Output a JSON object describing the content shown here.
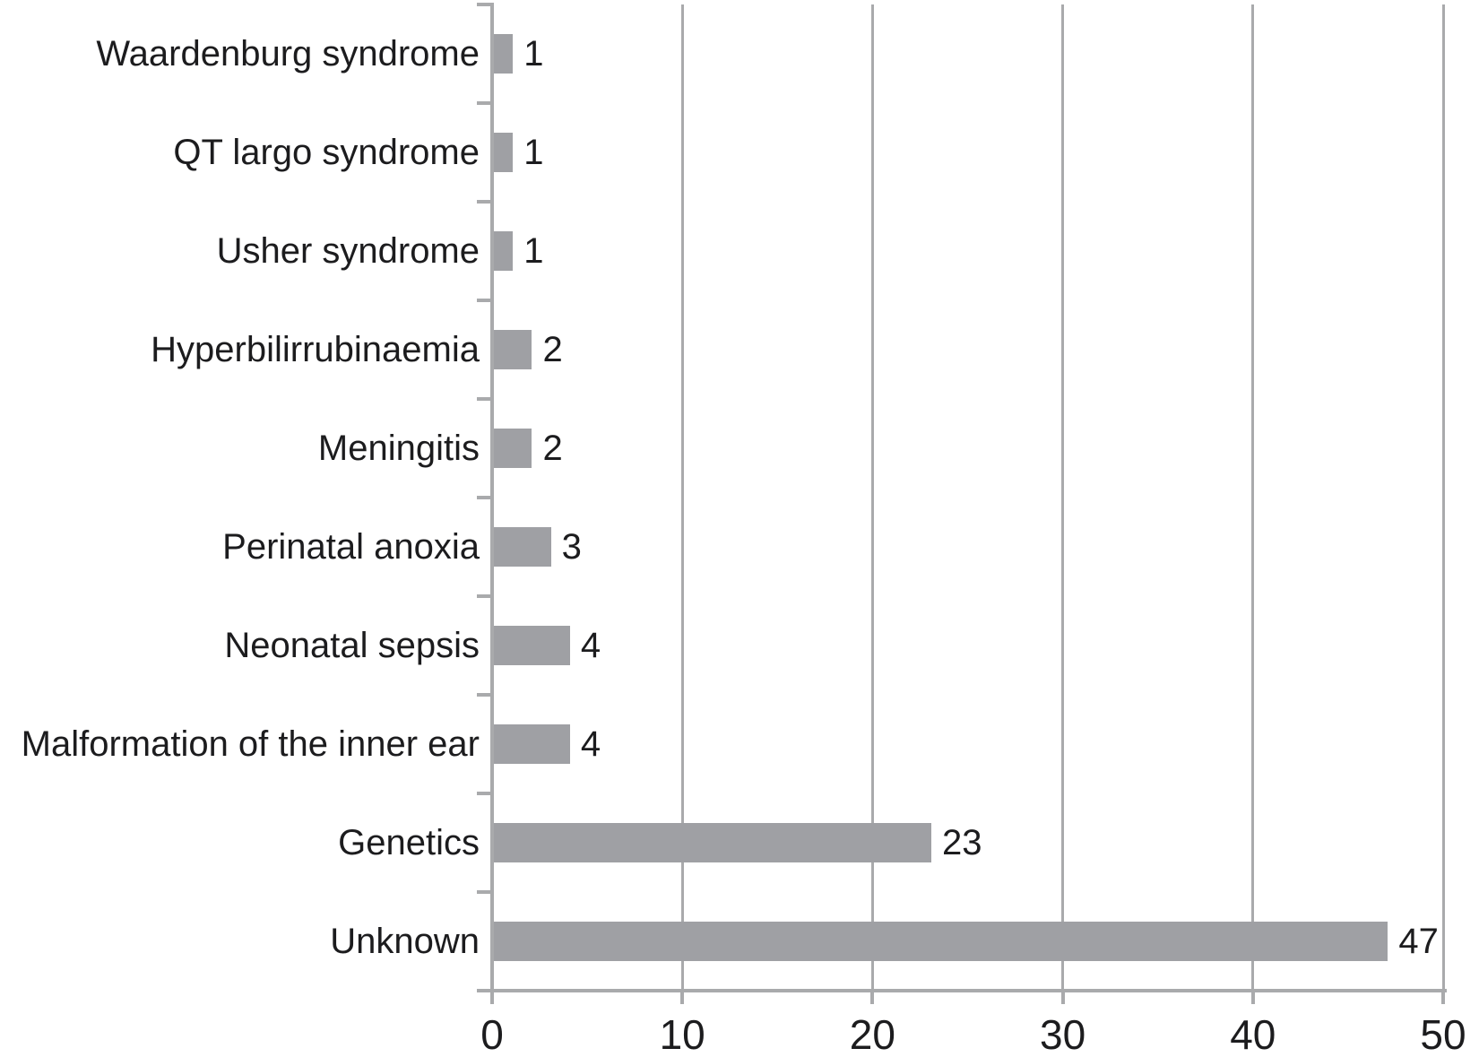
{
  "figure": {
    "background_color": "#ffffff",
    "text_color": "#1c1c1e",
    "bar_color": "#9fa0a4",
    "axis_color": "#a9aaac",
    "grid_color": "#a9aaac"
  },
  "chart_data": {
    "type": "bar",
    "orientation": "horizontal",
    "title": "",
    "xlabel": "",
    "ylabel": "",
    "legend": "none",
    "grid": "vertical-only",
    "xlim": [
      0,
      50
    ],
    "x_ticks": [
      0,
      10,
      20,
      30,
      40,
      50
    ],
    "categories": [
      "Waardenburg syndrome",
      "QT largo syndrome",
      "Usher syndrome",
      "Hyperbilirrubinaemia",
      "Meningitis",
      "Perinatal anoxia",
      "Neonatal sepsis",
      "Malformation of the inner ear",
      "Genetics",
      "Unknown"
    ],
    "values": [
      1,
      1,
      1,
      2,
      2,
      3,
      4,
      4,
      23,
      47
    ],
    "value_labels": [
      "1",
      "1",
      "1",
      "2",
      "2",
      "3",
      "4",
      "4",
      "23",
      "47"
    ]
  }
}
